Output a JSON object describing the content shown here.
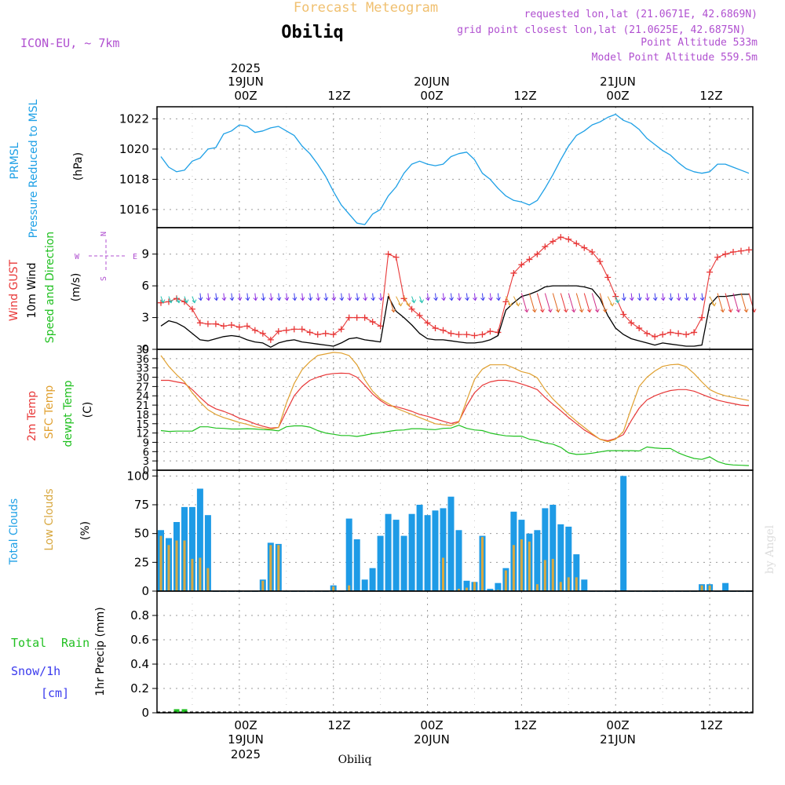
{
  "header": {
    "title": "Forecast Meteogram",
    "location": "Obiliq",
    "model": "ICON-EU, ~ 7km",
    "requested": "requested lon,lat (21.0671E, 42.6869N)",
    "gridpoint": "grid point closest lon,lat (21.0625E, 42.6875N)",
    "point_alt": "Point Altitude 533m",
    "model_alt": "Model Point Altitude 559.5m",
    "watermark": "by Angel",
    "footer_location": "Obiliq"
  },
  "time_axis": {
    "top_year": "2025",
    "bottom_year": "2025",
    "date_labels": [
      "19JUN",
      "20JUN",
      "21JUN"
    ],
    "hour_labels": [
      "00Z",
      "12Z",
      "00Z",
      "12Z",
      "00Z",
      "12Z"
    ]
  },
  "panel_labels": {
    "prmsl_a": "PRMSL",
    "prmsl_b": "Pressure Reduced to MSL",
    "prmsl_unit": "(hPa)",
    "gust": "Wind GUST",
    "wind10": "10m Wind",
    "speeddir": "Speed and Direction",
    "wind_unit": "(m/s)",
    "compass_n": "N",
    "compass_s": "S",
    "compass_w": "W",
    "compass_e": "E",
    "t2m": "2m Temp",
    "sfc": "SFC Temp",
    "dewpt": "dewpt Temp",
    "temp_unit": "(C)",
    "total_clouds": "Total Clouds",
    "low_clouds": "Low Clouds",
    "cloud_unit": "(%)",
    "total_rain_a": "Total",
    "total_rain_b": "Rain",
    "snow": "Snow/1h",
    "snow_unit": "[cm]",
    "precip": "1hr Precip (mm)"
  },
  "chart_data": [
    {
      "type": "line",
      "title": "PRMSL Pressure Reduced to MSL",
      "ylabel": "(hPa)",
      "ylim": [
        1014.8,
        1022.8
      ],
      "yticks": [
        1016,
        1018,
        1020,
        1022
      ],
      "hours": [
        -10,
        -9,
        -8,
        -7,
        -6,
        -5,
        -4,
        -3,
        -2,
        -1,
        0,
        1,
        2,
        3,
        4,
        5,
        6,
        7,
        8,
        9,
        10,
        11,
        12,
        13,
        14,
        15,
        16,
        17,
        18,
        19,
        20,
        21,
        22,
        23,
        24,
        25,
        26,
        27,
        28,
        29,
        30,
        31,
        32,
        33,
        34,
        35,
        36,
        37,
        38,
        39,
        40,
        41,
        42,
        43,
        44,
        45,
        46,
        47,
        48,
        49,
        50,
        51,
        52,
        53,
        54,
        55,
        56,
        57,
        58,
        59,
        60,
        61,
        62,
        63,
        64,
        65
      ],
      "values": [
        1019.5,
        1018.8,
        1018.5,
        1018.6,
        1019.2,
        1019.4,
        1020.0,
        1020.1,
        1021.0,
        1021.2,
        1021.6,
        1021.5,
        1021.1,
        1021.2,
        1021.4,
        1021.5,
        1021.2,
        1020.9,
        1020.2,
        1019.7,
        1019.0,
        1018.2,
        1017.2,
        1016.3,
        1015.7,
        1015.1,
        1015.0,
        1015.7,
        1016.0,
        1016.9,
        1017.5,
        1018.4,
        1019.0,
        1019.2,
        1019.0,
        1018.9,
        1019.0,
        1019.5,
        1019.7,
        1019.8,
        1019.3,
        1018.4,
        1018.0,
        1017.4,
        1016.9,
        1016.6,
        1016.5,
        1016.3,
        1016.6,
        1017.4,
        1018.3,
        1019.3,
        1020.2,
        1020.9,
        1021.2,
        1021.6,
        1021.8,
        1022.1,
        1022.3,
        1021.9,
        1021.7,
        1021.3,
        1020.7,
        1020.3,
        1019.9,
        1019.6,
        1019.1,
        1018.7,
        1018.5,
        1018.4,
        1018.5,
        1019.0,
        1019.0,
        1018.8,
        1018.6,
        1018.4
      ]
    },
    {
      "type": "line",
      "title": "Wind GUST / 10m Wind Speed and Direction",
      "ylabel": "(m/s)",
      "ylim": [
        0,
        11.5
      ],
      "yticks": [
        0,
        3,
        6,
        9
      ],
      "hours": [
        -10,
        -9,
        -8,
        -7,
        -6,
        -5,
        -4,
        -3,
        -2,
        -1,
        0,
        1,
        2,
        3,
        4,
        5,
        6,
        7,
        8,
        9,
        10,
        11,
        12,
        13,
        14,
        15,
        16,
        17,
        18,
        19,
        20,
        21,
        22,
        23,
        24,
        25,
        26,
        27,
        28,
        29,
        30,
        31,
        32,
        33,
        34,
        35,
        36,
        37,
        38,
        39,
        40,
        41,
        42,
        43,
        44,
        45,
        46,
        47,
        48,
        49,
        50,
        51,
        52,
        53,
        54,
        55,
        56,
        57,
        58,
        59,
        60,
        61,
        62,
        63,
        64,
        65
      ],
      "series": [
        {
          "name": "Wind GUST",
          "values": [
            4.4,
            4.5,
            4.8,
            4.5,
            3.8,
            2.5,
            2.4,
            2.4,
            2.2,
            2.3,
            2.1,
            2.2,
            1.8,
            1.5,
            0.9,
            1.7,
            1.8,
            1.9,
            1.9,
            1.6,
            1.4,
            1.5,
            1.4,
            1.9,
            3.0,
            3.0,
            3.0,
            2.6,
            2.2,
            9.0,
            8.7,
            4.8,
            3.8,
            3.2,
            2.5,
            2.0,
            1.8,
            1.5,
            1.4,
            1.4,
            1.3,
            1.4,
            1.7,
            1.6,
            4.5,
            7.2,
            8.0,
            8.5,
            9.0,
            9.7,
            10.2,
            10.6,
            10.4,
            10.0,
            9.6,
            9.2,
            8.3,
            6.8,
            5.0,
            3.3,
            2.5,
            2.0,
            1.5,
            1.2,
            1.4,
            1.6,
            1.5,
            1.4,
            1.6,
            3.0,
            7.3,
            8.7,
            9.0,
            9.2,
            9.3,
            9.4
          ]
        },
        {
          "name": "10m Wind",
          "values": [
            2.2,
            2.7,
            2.5,
            2.1,
            1.5,
            0.9,
            0.8,
            1.0,
            1.2,
            1.3,
            1.2,
            0.9,
            0.7,
            0.6,
            0.2,
            0.6,
            0.8,
            0.9,
            0.7,
            0.6,
            0.5,
            0.4,
            0.3,
            0.6,
            1.0,
            1.1,
            0.9,
            0.8,
            0.7,
            5.0,
            3.6,
            3.0,
            2.3,
            1.5,
            1.0,
            0.9,
            0.9,
            0.8,
            0.7,
            0.6,
            0.6,
            0.7,
            0.9,
            1.3,
            3.7,
            4.4,
            5.0,
            5.2,
            5.5,
            5.9,
            6.0,
            6.0,
            6.0,
            6.0,
            5.9,
            5.7,
            4.8,
            3.2,
            2.0,
            1.4,
            1.0,
            0.8,
            0.6,
            0.4,
            0.6,
            0.5,
            0.4,
            0.3,
            0.3,
            0.4,
            4.2,
            5.0,
            5.0,
            5.1,
            5.2,
            5.2
          ]
        }
      ]
    },
    {
      "type": "line",
      "title": "2m Temp / SFC Temp / dewpt Temp",
      "ylabel": "(C)",
      "ylim": [
        0,
        39
      ],
      "yticks": [
        0,
        3,
        6,
        9,
        12,
        15,
        18,
        21,
        24,
        27,
        30,
        33,
        36,
        39
      ],
      "hours": [
        -10,
        -9,
        -8,
        -7,
        -6,
        -5,
        -4,
        -3,
        -2,
        -1,
        0,
        1,
        2,
        3,
        4,
        5,
        6,
        7,
        8,
        9,
        10,
        11,
        12,
        13,
        14,
        15,
        16,
        17,
        18,
        19,
        20,
        21,
        22,
        23,
        24,
        25,
        26,
        27,
        28,
        29,
        30,
        31,
        32,
        33,
        34,
        35,
        36,
        37,
        38,
        39,
        40,
        41,
        42,
        43,
        44,
        45,
        46,
        47,
        48,
        49,
        50,
        51,
        52,
        53,
        54,
        55,
        56,
        57,
        58,
        59,
        60,
        61,
        62,
        63,
        64,
        65
      ],
      "series": [
        {
          "name": "2m Temp",
          "values": [
            29.0,
            29.0,
            28.5,
            28.0,
            26.0,
            23.5,
            21.2,
            19.8,
            19.0,
            18.0,
            16.8,
            16.0,
            15.0,
            14.2,
            13.6,
            13.8,
            19.0,
            24.0,
            27.0,
            29.0,
            30.0,
            30.8,
            31.2,
            31.3,
            31.2,
            30.0,
            27.4,
            24.6,
            22.5,
            20.9,
            20.5,
            19.8,
            19.0,
            18.0,
            17.4,
            16.6,
            15.8,
            15.1,
            15.7,
            20.8,
            25.0,
            27.4,
            28.5,
            29.0,
            29.0,
            28.6,
            27.8,
            27.0,
            26.0,
            23.5,
            21.3,
            19.2,
            17.0,
            15.0,
            13.0,
            11.5,
            10.0,
            9.5,
            10.2,
            11.5,
            16.0,
            20.0,
            22.7,
            24.0,
            25.0,
            25.7,
            26.0,
            26.0,
            25.5,
            24.5,
            23.5,
            22.6,
            22.0,
            21.5,
            21.0,
            20.8
          ]
        },
        {
          "name": "SFC Temp",
          "values": [
            37.0,
            33.5,
            30.8,
            28.5,
            25.0,
            22.0,
            19.5,
            18.0,
            17.0,
            16.2,
            15.4,
            14.8,
            14.0,
            13.6,
            13.2,
            13.8,
            21.6,
            28.0,
            32.4,
            35.0,
            37.0,
            37.5,
            38.0,
            37.8,
            37.0,
            34.0,
            29.2,
            25.5,
            23.0,
            21.5,
            20.0,
            19.0,
            18.0,
            17.0,
            16.0,
            15.0,
            14.7,
            14.4,
            15.5,
            22.5,
            29.3,
            32.6,
            34.0,
            34.0,
            34.0,
            33.0,
            31.8,
            31.2,
            29.8,
            26.0,
            23.0,
            20.5,
            18.0,
            15.8,
            13.8,
            11.8,
            10.0,
            9.2,
            10.0,
            12.5,
            20.0,
            27.0,
            30.0,
            32.0,
            33.5,
            34.0,
            34.2,
            33.4,
            31.2,
            28.5,
            26.0,
            24.8,
            24.0,
            23.5,
            23.0,
            22.5
          ]
        },
        {
          "name": "dewpt Temp",
          "values": [
            12.8,
            12.5,
            12.6,
            12.6,
            12.6,
            14.0,
            14.0,
            13.6,
            13.5,
            13.3,
            13.3,
            13.4,
            13.3,
            13.1,
            13.0,
            12.7,
            14.0,
            14.3,
            14.3,
            13.9,
            12.8,
            12.0,
            11.6,
            11.2,
            11.2,
            10.9,
            11.3,
            11.8,
            12.1,
            12.5,
            12.9,
            13.0,
            13.4,
            13.4,
            13.2,
            13.1,
            13.5,
            13.6,
            14.5,
            13.5,
            13.0,
            12.8,
            12.0,
            11.5,
            11.1,
            11.0,
            11.0,
            10.0,
            9.6,
            8.8,
            8.4,
            7.4,
            5.6,
            5.1,
            5.2,
            5.5,
            5.9,
            6.3,
            6.3,
            6.3,
            6.3,
            6.2,
            7.5,
            7.2,
            7.0,
            7.0,
            5.6,
            4.6,
            3.8,
            3.5,
            4.3,
            2.8,
            2.0,
            1.7,
            1.6,
            1.5
          ]
        }
      ]
    },
    {
      "type": "bar",
      "title": "Total Clouds / Low Clouds",
      "ylabel": "(%)",
      "ylim": [
        0,
        105
      ],
      "yticks": [
        0,
        25,
        50,
        75,
        100
      ],
      "hours": [
        -10,
        -9,
        -8,
        -7,
        -6,
        -5,
        -4,
        -3,
        -2,
        -1,
        0,
        1,
        2,
        3,
        4,
        5,
        6,
        7,
        8,
        9,
        10,
        11,
        12,
        13,
        14,
        15,
        16,
        17,
        18,
        19,
        20,
        21,
        22,
        23,
        24,
        25,
        26,
        27,
        28,
        29,
        30,
        31,
        32,
        33,
        34,
        35,
        36,
        37,
        38,
        39,
        40,
        41,
        42,
        43,
        44,
        45,
        46,
        47,
        48,
        49,
        50,
        51,
        52,
        53,
        54,
        55,
        56,
        57,
        58,
        59,
        60,
        61,
        62,
        63,
        64,
        65
      ],
      "series": [
        {
          "name": "Total Clouds",
          "values": [
            53,
            46,
            60,
            73,
            73,
            89,
            66,
            0,
            0,
            0,
            0,
            0,
            0,
            10,
            42,
            41,
            0,
            0,
            0,
            0,
            0,
            0,
            5,
            0,
            63,
            45,
            10,
            20,
            48,
            67,
            62,
            48,
            67,
            75,
            66,
            70,
            72,
            82,
            53,
            9,
            8,
            48,
            2,
            7,
            20,
            69,
            62,
            50,
            53,
            72,
            75,
            58,
            56,
            32,
            10,
            0,
            0,
            0,
            0,
            100,
            0,
            0,
            0,
            0,
            0,
            0,
            0,
            0,
            0,
            6,
            6,
            0,
            7,
            0,
            0,
            0
          ]
        },
        {
          "name": "Low Clouds",
          "values": [
            48,
            40,
            44,
            44,
            28,
            29,
            20,
            0,
            0,
            0,
            0,
            0,
            0,
            9,
            40,
            40,
            0,
            0,
            0,
            0,
            0,
            0,
            4,
            0,
            5,
            0,
            0,
            0,
            0,
            0,
            0,
            0,
            0,
            0,
            0,
            0,
            29,
            0,
            2,
            3,
            8,
            47,
            0,
            1,
            18,
            40,
            45,
            43,
            6,
            27,
            28,
            8,
            12,
            12,
            0,
            0,
            0,
            0,
            0,
            0,
            0,
            0,
            0,
            0,
            0,
            0,
            0,
            0,
            0,
            5,
            5,
            0,
            0,
            0,
            0,
            0
          ]
        }
      ]
    },
    {
      "type": "bar",
      "title": "Total Rain / Snow/1h - 1hr Precip",
      "ylabel": "1hr Precip (mm)",
      "ylim": [
        0,
        1.0
      ],
      "yticks": [
        0,
        0.2,
        0.4,
        0.6,
        0.8
      ],
      "ytick_labels": [
        "0",
        "0.2",
        "0.4",
        "0.6",
        "0.8"
      ],
      "hours": [
        -8,
        -7
      ],
      "series": [
        {
          "name": "Total Rain",
          "values": [
            0.03,
            0.03
          ]
        }
      ]
    }
  ],
  "colors": {
    "pressure": "#1ea0e6",
    "gust": "#e83838",
    "wind": "#000000",
    "sfc": "#e0a030",
    "dewpt": "#20c020",
    "total_clouds": "#1e9be6",
    "low_clouds": "#d8a840",
    "rain": "#22c022",
    "snow": "#3a3aee",
    "header_orange": "#f0c070",
    "header_purple": "#b050d0",
    "grid": "#9a9a9a"
  }
}
